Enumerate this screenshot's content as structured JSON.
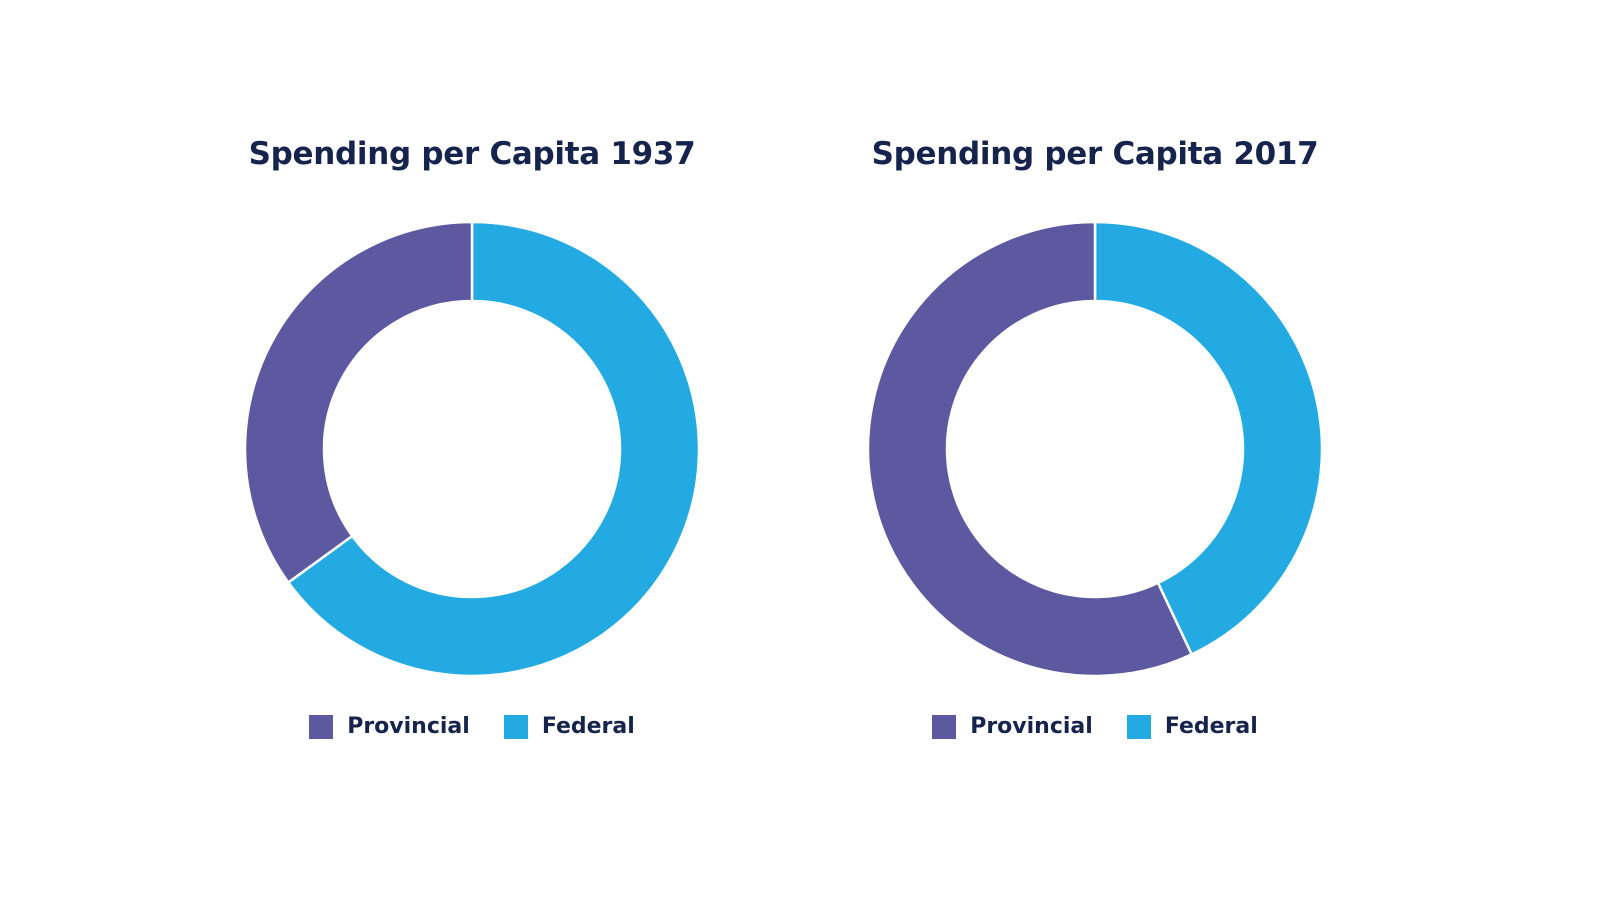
{
  "chart_data": [
    {
      "type": "pie",
      "variant": "donut",
      "title": "Spending per Capita 1937",
      "categories": [
        "Provincial",
        "Federal"
      ],
      "values": [
        35,
        65
      ],
      "unit": "percent share",
      "colors": [
        "#5c59a0",
        "#24aae2"
      ],
      "start": "12 o'clock",
      "direction": "clockwise, Federal first",
      "legend": {
        "position": "bottom",
        "entries": [
          "Provincial",
          "Federal"
        ]
      }
    },
    {
      "type": "pie",
      "variant": "donut",
      "title": "Spending per Capita 2017",
      "categories": [
        "Provincial",
        "Federal"
      ],
      "values": [
        57,
        43
      ],
      "unit": "percent share",
      "colors": [
        "#5c59a0",
        "#24aae2"
      ],
      "start": "12 o'clock",
      "direction": "clockwise, Federal first",
      "legend": {
        "position": "bottom",
        "entries": [
          "Provincial",
          "Federal"
        ]
      }
    }
  ],
  "colors": {
    "title_text": "#16244d",
    "provincial": "#5c59a0",
    "federal": "#24aae2",
    "background": "#ffffff"
  }
}
